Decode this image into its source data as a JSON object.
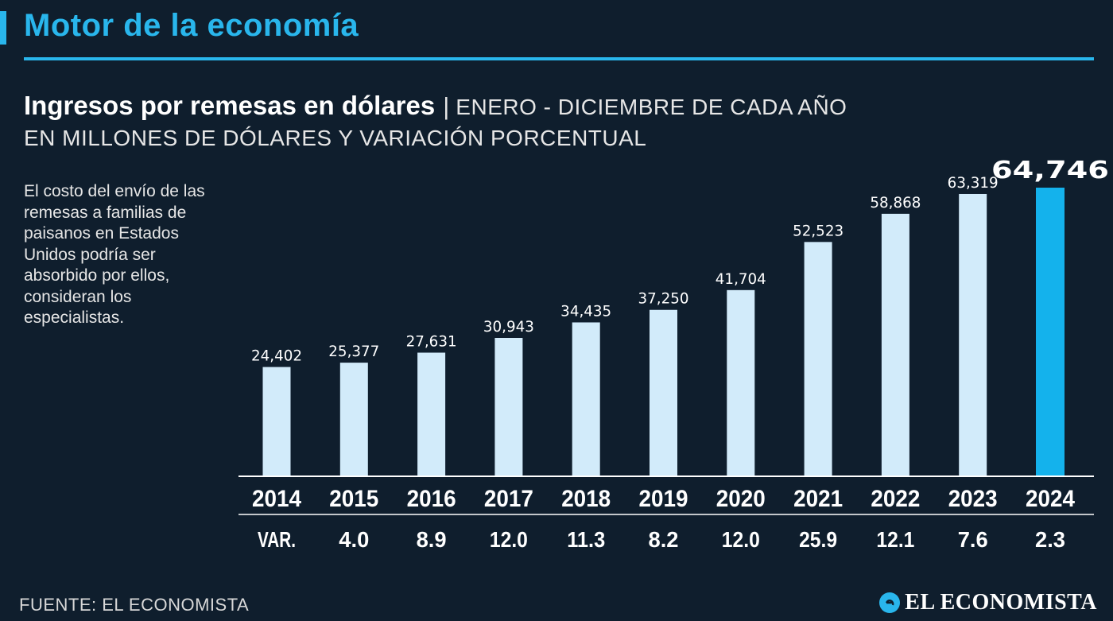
{
  "header": {
    "title": "Motor de la economía"
  },
  "subtitle": {
    "main": "Ingresos por remesas en dólares",
    "separator": "|",
    "period": "ENERO - DICIEMBRE DE CADA AÑO",
    "units": "EN MILLONES DE DÓLARES Y VARIACIÓN PORCENTUAL"
  },
  "side_note": "El costo del envío de las remesas a familias de paisanos en Estados Unidos podría ser absorbido por ellos, consideran los especialistas.",
  "footer": {
    "source": "FUENTE: EL ECONOMISTA",
    "brand": "EL ECONOMISTA"
  },
  "colors": {
    "background": "#0f1e2d",
    "accent": "#29b6ec",
    "bar": "#d2ebfa",
    "bar_highlight": "#14b2ec"
  },
  "chart_data": {
    "type": "bar",
    "title": "Ingresos por remesas en dólares",
    "categories": [
      "2014",
      "2015",
      "2016",
      "2017",
      "2018",
      "2019",
      "2020",
      "2021",
      "2022",
      "2023",
      "2024"
    ],
    "values": [
      24402,
      25377,
      27631,
      30943,
      34435,
      37250,
      41704,
      52523,
      58868,
      63319,
      64746
    ],
    "value_labels": [
      "24,402",
      "25,377",
      "27,631",
      "30,943",
      "34,435",
      "37,250",
      "41,704",
      "52,523",
      "58,868",
      "63,319",
      "64,746"
    ],
    "highlight_index": 10,
    "variation_label": "VAR.",
    "variation": [
      "VAR.",
      "4.0",
      "8.9",
      "12.0",
      "11.3",
      "8.2",
      "12.0",
      "25.9",
      "12.1",
      "7.6",
      "2.3"
    ],
    "ylim": [
      0,
      64746
    ],
    "xlabel": "",
    "ylabel": "",
    "grid": false
  }
}
